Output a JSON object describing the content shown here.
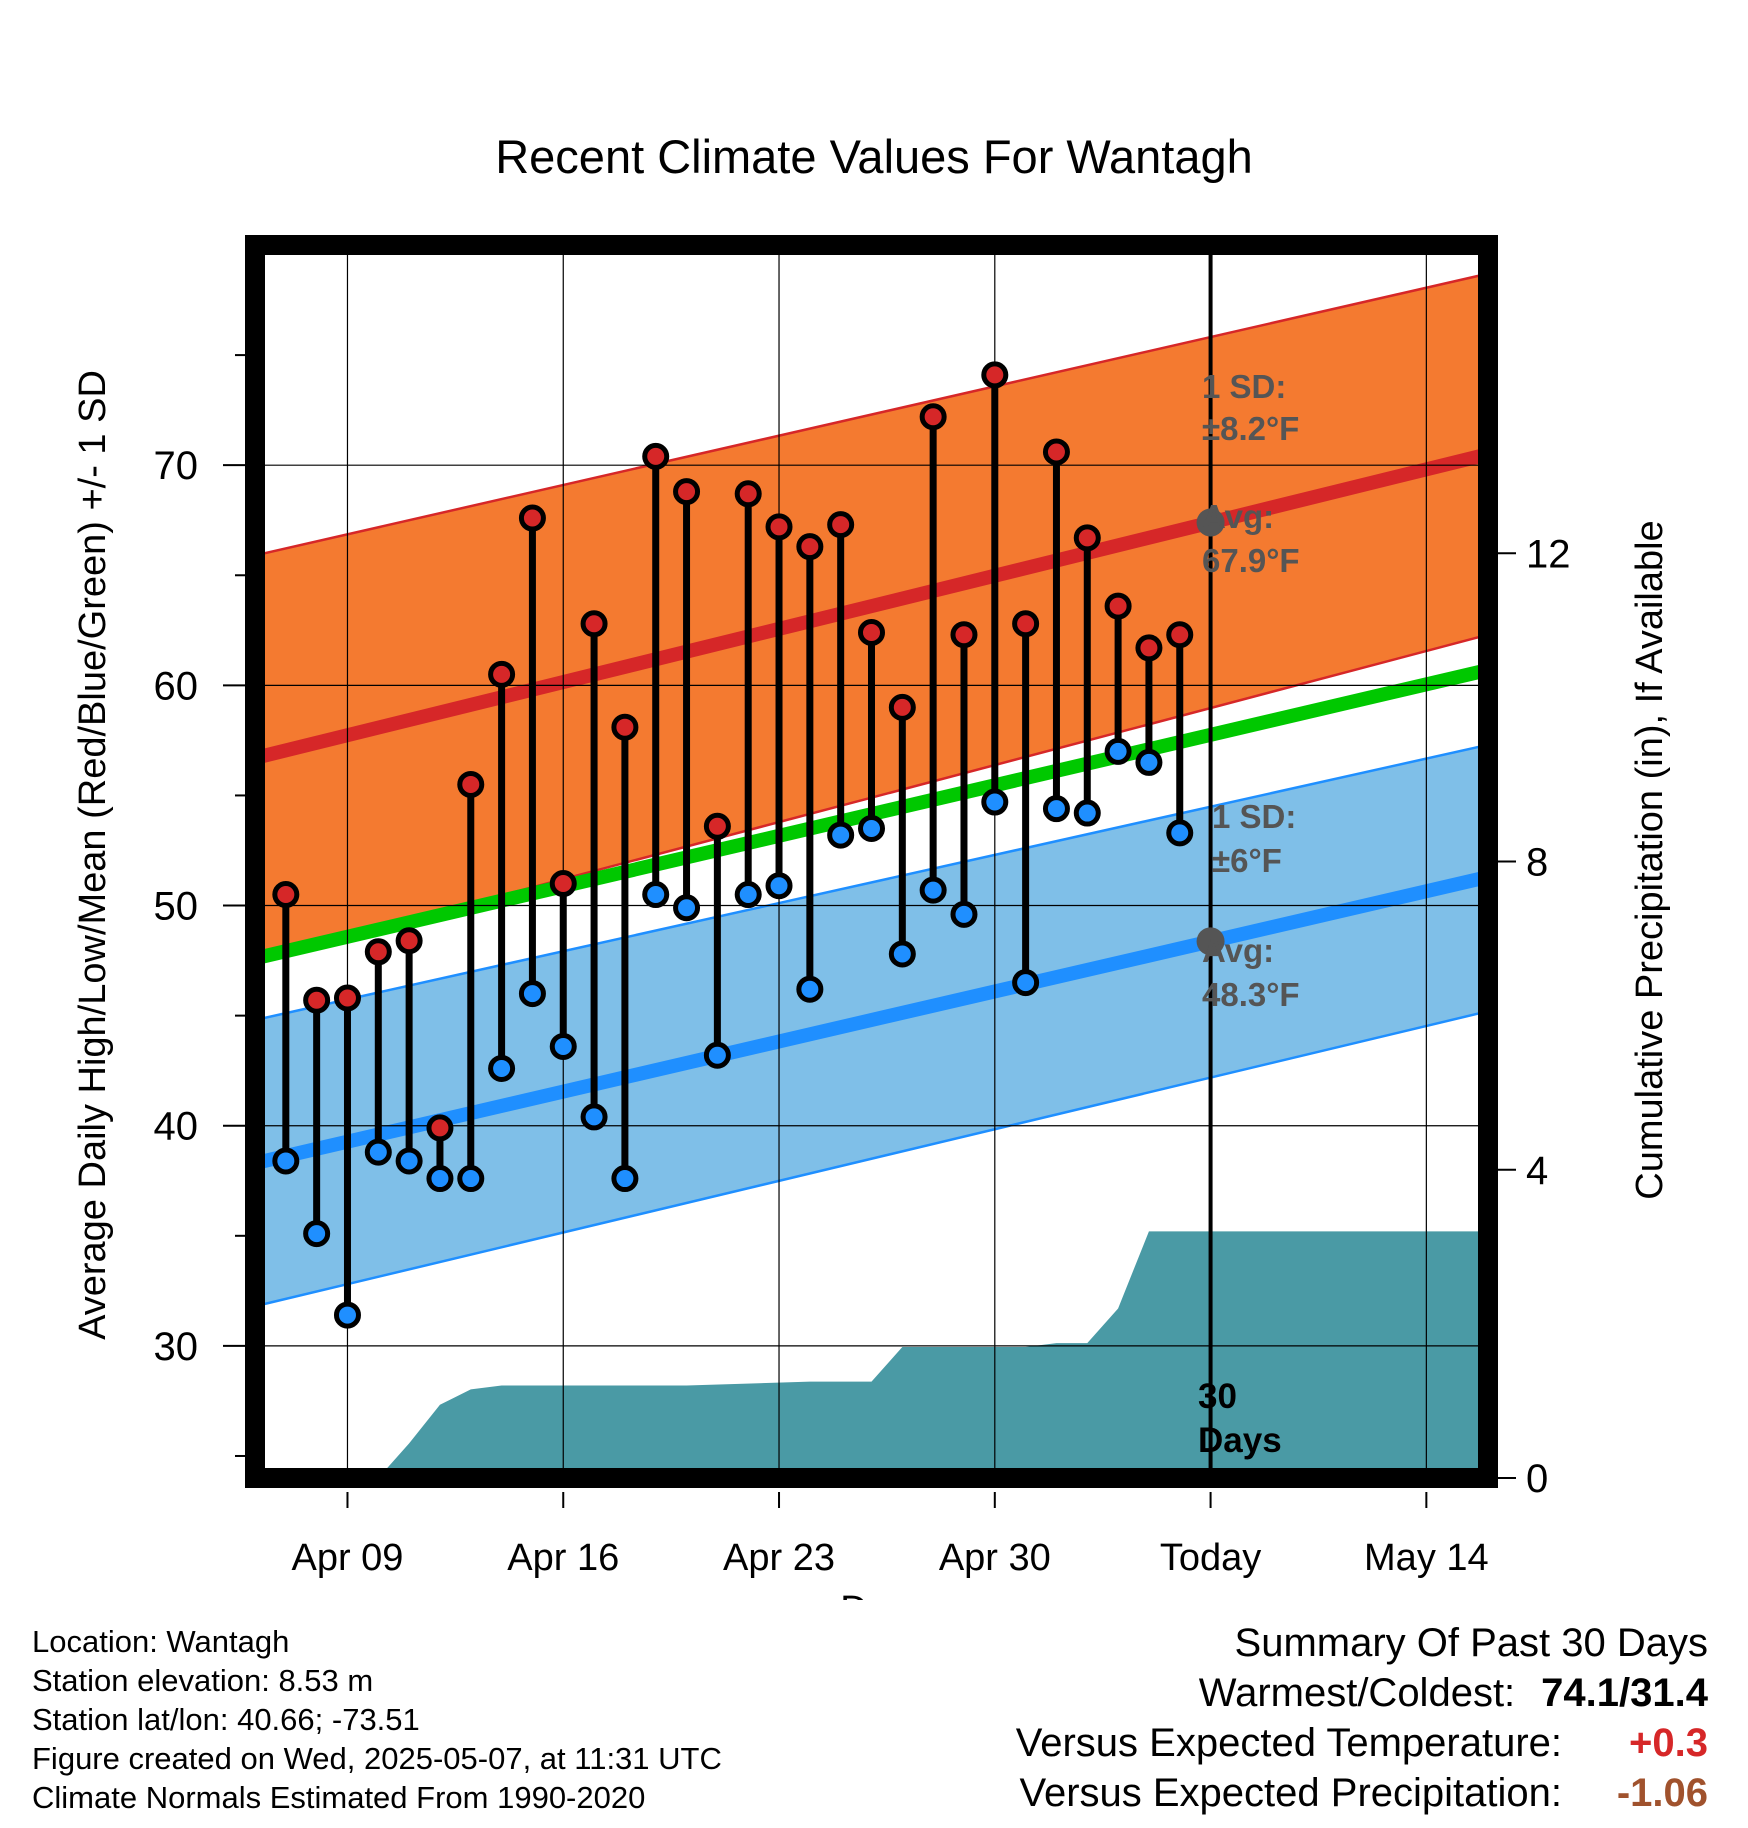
{
  "title": "Recent Climate Values For Wantagh",
  "chart_data": {
    "type": "line",
    "title": "Recent Climate Values For Wantagh",
    "xlabel": "Day",
    "ylabel": "Average Daily High/Low/Mean (Red/Blue/Green) +/- 1 SD",
    "y2label": "Cumulative Precipitation (in), If Available",
    "x_tick_labels": [
      "Apr 09",
      "Apr 16",
      "Apr 23",
      "Apr 30",
      "Today",
      "May 14"
    ],
    "x_tick_dates": [
      "2025-04-09",
      "2025-04-16",
      "2025-04-23",
      "2025-04-30",
      "2025-05-07",
      "2025-05-14"
    ],
    "xlim": [
      "2025-04-06",
      "2025-05-16"
    ],
    "ylim": [
      24,
      80
    ],
    "y_ticks": [
      30,
      40,
      50,
      60,
      70
    ],
    "y2lim": [
      0,
      16
    ],
    "y2_ticks": [
      0,
      4,
      8,
      12
    ],
    "today": "2025-05-07",
    "grid": true,
    "normals": {
      "dates": [
        "2025-04-06",
        "2025-05-16"
      ],
      "high_avg": [
        56.7,
        70.5
      ],
      "high_upper": [
        65.9,
        78.7
      ],
      "high_lower": [
        47.5,
        62.3
      ],
      "mean_avg": [
        47.6,
        60.7
      ],
      "low_avg": [
        38.3,
        51.3
      ],
      "low_upper": [
        44.8,
        57.3
      ],
      "low_lower": [
        31.8,
        45.2
      ]
    },
    "series": [
      {
        "name": "High",
        "color": "#d62728",
        "x": [
          "2025-04-07",
          "2025-04-08",
          "2025-04-09",
          "2025-04-10",
          "2025-04-11",
          "2025-04-12",
          "2025-04-13",
          "2025-04-14",
          "2025-04-15",
          "2025-04-16",
          "2025-04-17",
          "2025-04-18",
          "2025-04-19",
          "2025-04-20",
          "2025-04-21",
          "2025-04-22",
          "2025-04-23",
          "2025-04-24",
          "2025-04-25",
          "2025-04-26",
          "2025-04-27",
          "2025-04-28",
          "2025-04-29",
          "2025-04-30",
          "2025-05-01",
          "2025-05-02",
          "2025-05-03",
          "2025-05-04",
          "2025-05-05",
          "2025-05-06"
        ],
        "values": [
          50.5,
          45.7,
          45.8,
          47.9,
          48.4,
          39.9,
          55.5,
          60.5,
          67.6,
          51.0,
          62.8,
          58.1,
          70.4,
          68.8,
          53.6,
          68.7,
          67.2,
          66.3,
          67.3,
          62.4,
          59.0,
          72.2,
          62.3,
          74.1,
          62.8,
          70.6,
          66.7,
          63.6,
          61.7,
          62.3
        ]
      },
      {
        "name": "Low",
        "color": "#1f8fff",
        "x": [
          "2025-04-07",
          "2025-04-08",
          "2025-04-09",
          "2025-04-10",
          "2025-04-11",
          "2025-04-12",
          "2025-04-13",
          "2025-04-14",
          "2025-04-15",
          "2025-04-16",
          "2025-04-17",
          "2025-04-18",
          "2025-04-19",
          "2025-04-20",
          "2025-04-21",
          "2025-04-22",
          "2025-04-23",
          "2025-04-24",
          "2025-04-25",
          "2025-04-26",
          "2025-04-27",
          "2025-04-28",
          "2025-04-29",
          "2025-04-30",
          "2025-05-01",
          "2025-05-02",
          "2025-05-03",
          "2025-05-04",
          "2025-05-05",
          "2025-05-06"
        ],
        "values": [
          38.4,
          35.1,
          31.4,
          38.8,
          38.4,
          37.6,
          37.6,
          42.6,
          46.0,
          43.6,
          40.4,
          37.6,
          50.5,
          49.9,
          43.2,
          50.5,
          50.9,
          46.2,
          53.2,
          53.5,
          47.8,
          50.7,
          49.6,
          54.7,
          46.5,
          54.4,
          54.2,
          57.0,
          56.5,
          53.3
        ]
      }
    ],
    "precipitation": {
      "dates": [
        "2025-04-06",
        "2025-04-09",
        "2025-04-10",
        "2025-04-11",
        "2025-04-12",
        "2025-04-13",
        "2025-04-14",
        "2025-04-20",
        "2025-04-24",
        "2025-04-25",
        "2025-04-26",
        "2025-04-27",
        "2025-05-01",
        "2025-05-02",
        "2025-05-03",
        "2025-05-04",
        "2025-05-05",
        "2025-05-06",
        "2025-05-16"
      ],
      "values": [
        0.0,
        0.0,
        0.0,
        0.45,
        0.95,
        1.15,
        1.2,
        1.2,
        1.25,
        1.25,
        1.25,
        1.7,
        1.7,
        1.75,
        1.75,
        2.2,
        3.2,
        3.2,
        3.2
      ]
    },
    "annotations": {
      "high_sd_title": "1 SD:",
      "high_sd": "±8.2°F",
      "high_avg_title": "Avg:",
      "high_avg": "67.9°F",
      "low_sd_title": "1 SD:",
      "low_sd": "±6°F",
      "low_avg_title": "Avg:",
      "low_avg": "48.3°F",
      "window_line1": "30",
      "window_line2": "Days"
    },
    "colors": {
      "high_band": "#f47a30",
      "high_line": "#d62728",
      "mean_line": "#00c800",
      "low_band": "#7fbfe8",
      "low_line": "#1f8fff",
      "precip": "#4a9aa5",
      "annotation": "#555555"
    }
  },
  "info": {
    "location": "Location: Wantagh",
    "elevation": "Station elevation: 8.53 m",
    "latlon": "Station lat/lon: 40.66; -73.51",
    "created": "Figure created on Wed, 2025-05-07, at 11:31 UTC",
    "normals": "Climate Normals Estimated From 1990-2020"
  },
  "summary": {
    "heading": "Summary Of Past 30 Days",
    "warm_cold_label": "Warmest/Coldest:",
    "warm_cold_value": "74.1/31.4",
    "temp_label": "Versus Expected Temperature:",
    "temp_value": "+0.3",
    "temp_color": "#d62728",
    "precip_label": "Versus Expected Precipitation:",
    "precip_value": "-1.06",
    "precip_color": "#a0522d"
  }
}
